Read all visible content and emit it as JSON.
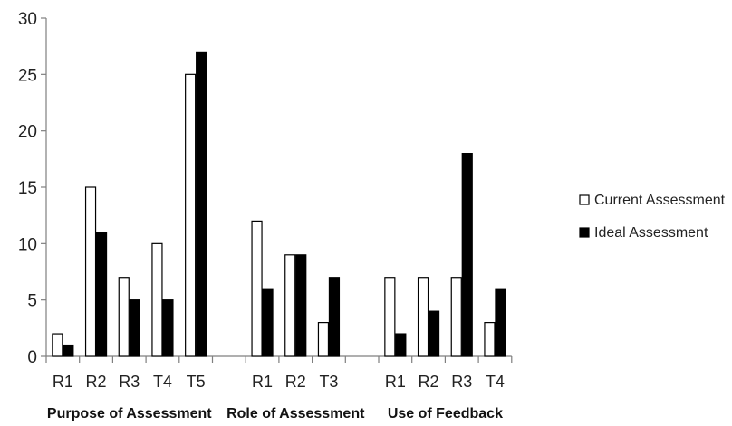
{
  "chart_data": {
    "type": "bar",
    "title": "",
    "xlabel": "",
    "ylabel": "",
    "ylim": [
      0,
      30
    ],
    "yticks": [
      0,
      5,
      10,
      15,
      20,
      25,
      30
    ],
    "grid": false,
    "legend_position": "right",
    "groups": [
      {
        "label": "Purpose of Assessment",
        "categories": [
          "R1",
          "R2",
          "R3",
          "T4",
          "T5"
        ]
      },
      {
        "label": "Role of Assessment",
        "categories": [
          "R1",
          "R2",
          "T3"
        ]
      },
      {
        "label": "Use of Feedback",
        "categories": [
          "R1",
          "R2",
          "R3",
          "T4"
        ]
      }
    ],
    "categories": [
      "R1",
      "R2",
      "R3",
      "T4",
      "T5",
      "R1",
      "R2",
      "T3",
      "R1",
      "R2",
      "R3",
      "T4"
    ],
    "series": [
      {
        "name": "Current Assessment",
        "color": "#ffffff",
        "values": [
          2,
          15,
          7,
          10,
          25,
          12,
          9,
          3,
          7,
          7,
          7,
          3
        ]
      },
      {
        "name": "Ideal Assessment",
        "color": "#000000",
        "values": [
          1,
          11,
          5,
          5,
          27,
          6,
          9,
          7,
          2,
          4,
          18,
          6
        ]
      }
    ]
  }
}
